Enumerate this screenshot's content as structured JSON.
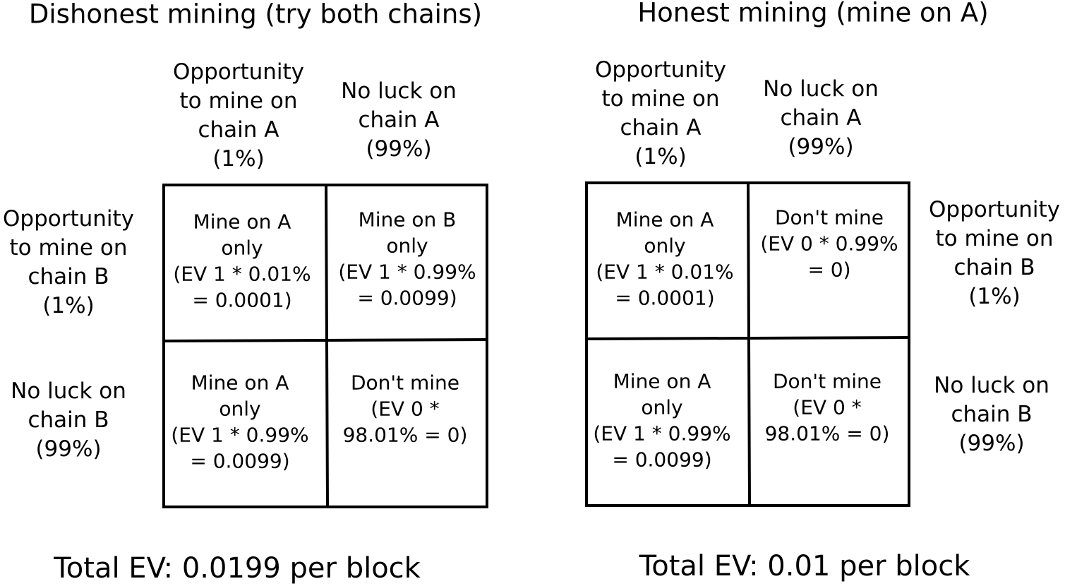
{
  "panels": [
    {
      "title": "Dishonest mining (try both chains)",
      "column_headers": [
        [
          "Opportunity",
          "to mine on",
          "chain A",
          "(1%)"
        ],
        [
          "No luck on",
          "chain A",
          "(99%)"
        ]
      ],
      "row_headers": [
        [
          "Opportunity",
          "to mine on",
          "chain B",
          "(1%)"
        ],
        [
          "No luck on",
          "chain B",
          "(99%)"
        ]
      ],
      "cells": [
        [
          [
            "Mine on A",
            "only",
            "(EV 1 * 0.01%",
            "= 0.0001)"
          ],
          [
            "Mine on B",
            "only",
            "(EV 1 * 0.99%",
            "= 0.0099)"
          ]
        ],
        [
          [
            "Mine on A",
            "only",
            "(EV 1 * 0.99%",
            "= 0.0099)"
          ],
          [
            "Don't mine",
            "(EV 0 *",
            "98.01% = 0)"
          ]
        ]
      ],
      "total": "Total EV: 0.0199 per block"
    },
    {
      "title": "Honest mining (mine on A)",
      "column_headers": [
        [
          "Opportunity",
          "to mine on",
          "chain A",
          "(1%)"
        ],
        [
          "No luck on",
          "chain A",
          "(99%)"
        ]
      ],
      "row_headers": [
        [
          "Opportunity",
          "to mine on",
          "chain B",
          "(1%)"
        ],
        [
          "No luck on",
          "chain B",
          "(99%)"
        ]
      ],
      "cells": [
        [
          [
            "Mine on A",
            "only",
            "(EV 1 * 0.01%",
            "= 0.0001)"
          ],
          [
            "Don't mine",
            "(EV 0 * 0.99%",
            "= 0)"
          ]
        ],
        [
          [
            "Mine on A",
            "only",
            "(EV 1 * 0.99%",
            "= 0.0099)"
          ],
          [
            "Don't mine",
            "(EV 0 *",
            "98.01% = 0)"
          ]
        ]
      ],
      "total": "Total EV: 0.01 per block"
    }
  ]
}
